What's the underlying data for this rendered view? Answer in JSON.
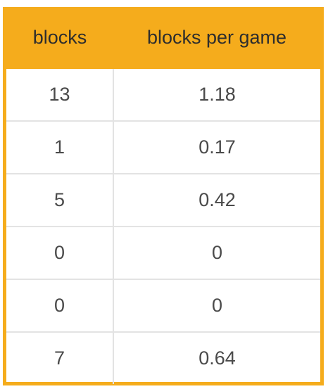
{
  "table": {
    "headers": [
      "blocks",
      "blocks per game"
    ],
    "rows": [
      [
        "13",
        "1.18"
      ],
      [
        "1",
        "0.17"
      ],
      [
        "5",
        "0.42"
      ],
      [
        "0",
        "0"
      ],
      [
        "0",
        "0"
      ],
      [
        "7",
        "0.64"
      ]
    ]
  },
  "colors": {
    "header_background": "#f5ac1c",
    "frame_border": "#f5ac1c",
    "grid_lines": "#e3e3e3",
    "header_text": "#2d2d2d",
    "cell_text": "#4a4a4a"
  }
}
